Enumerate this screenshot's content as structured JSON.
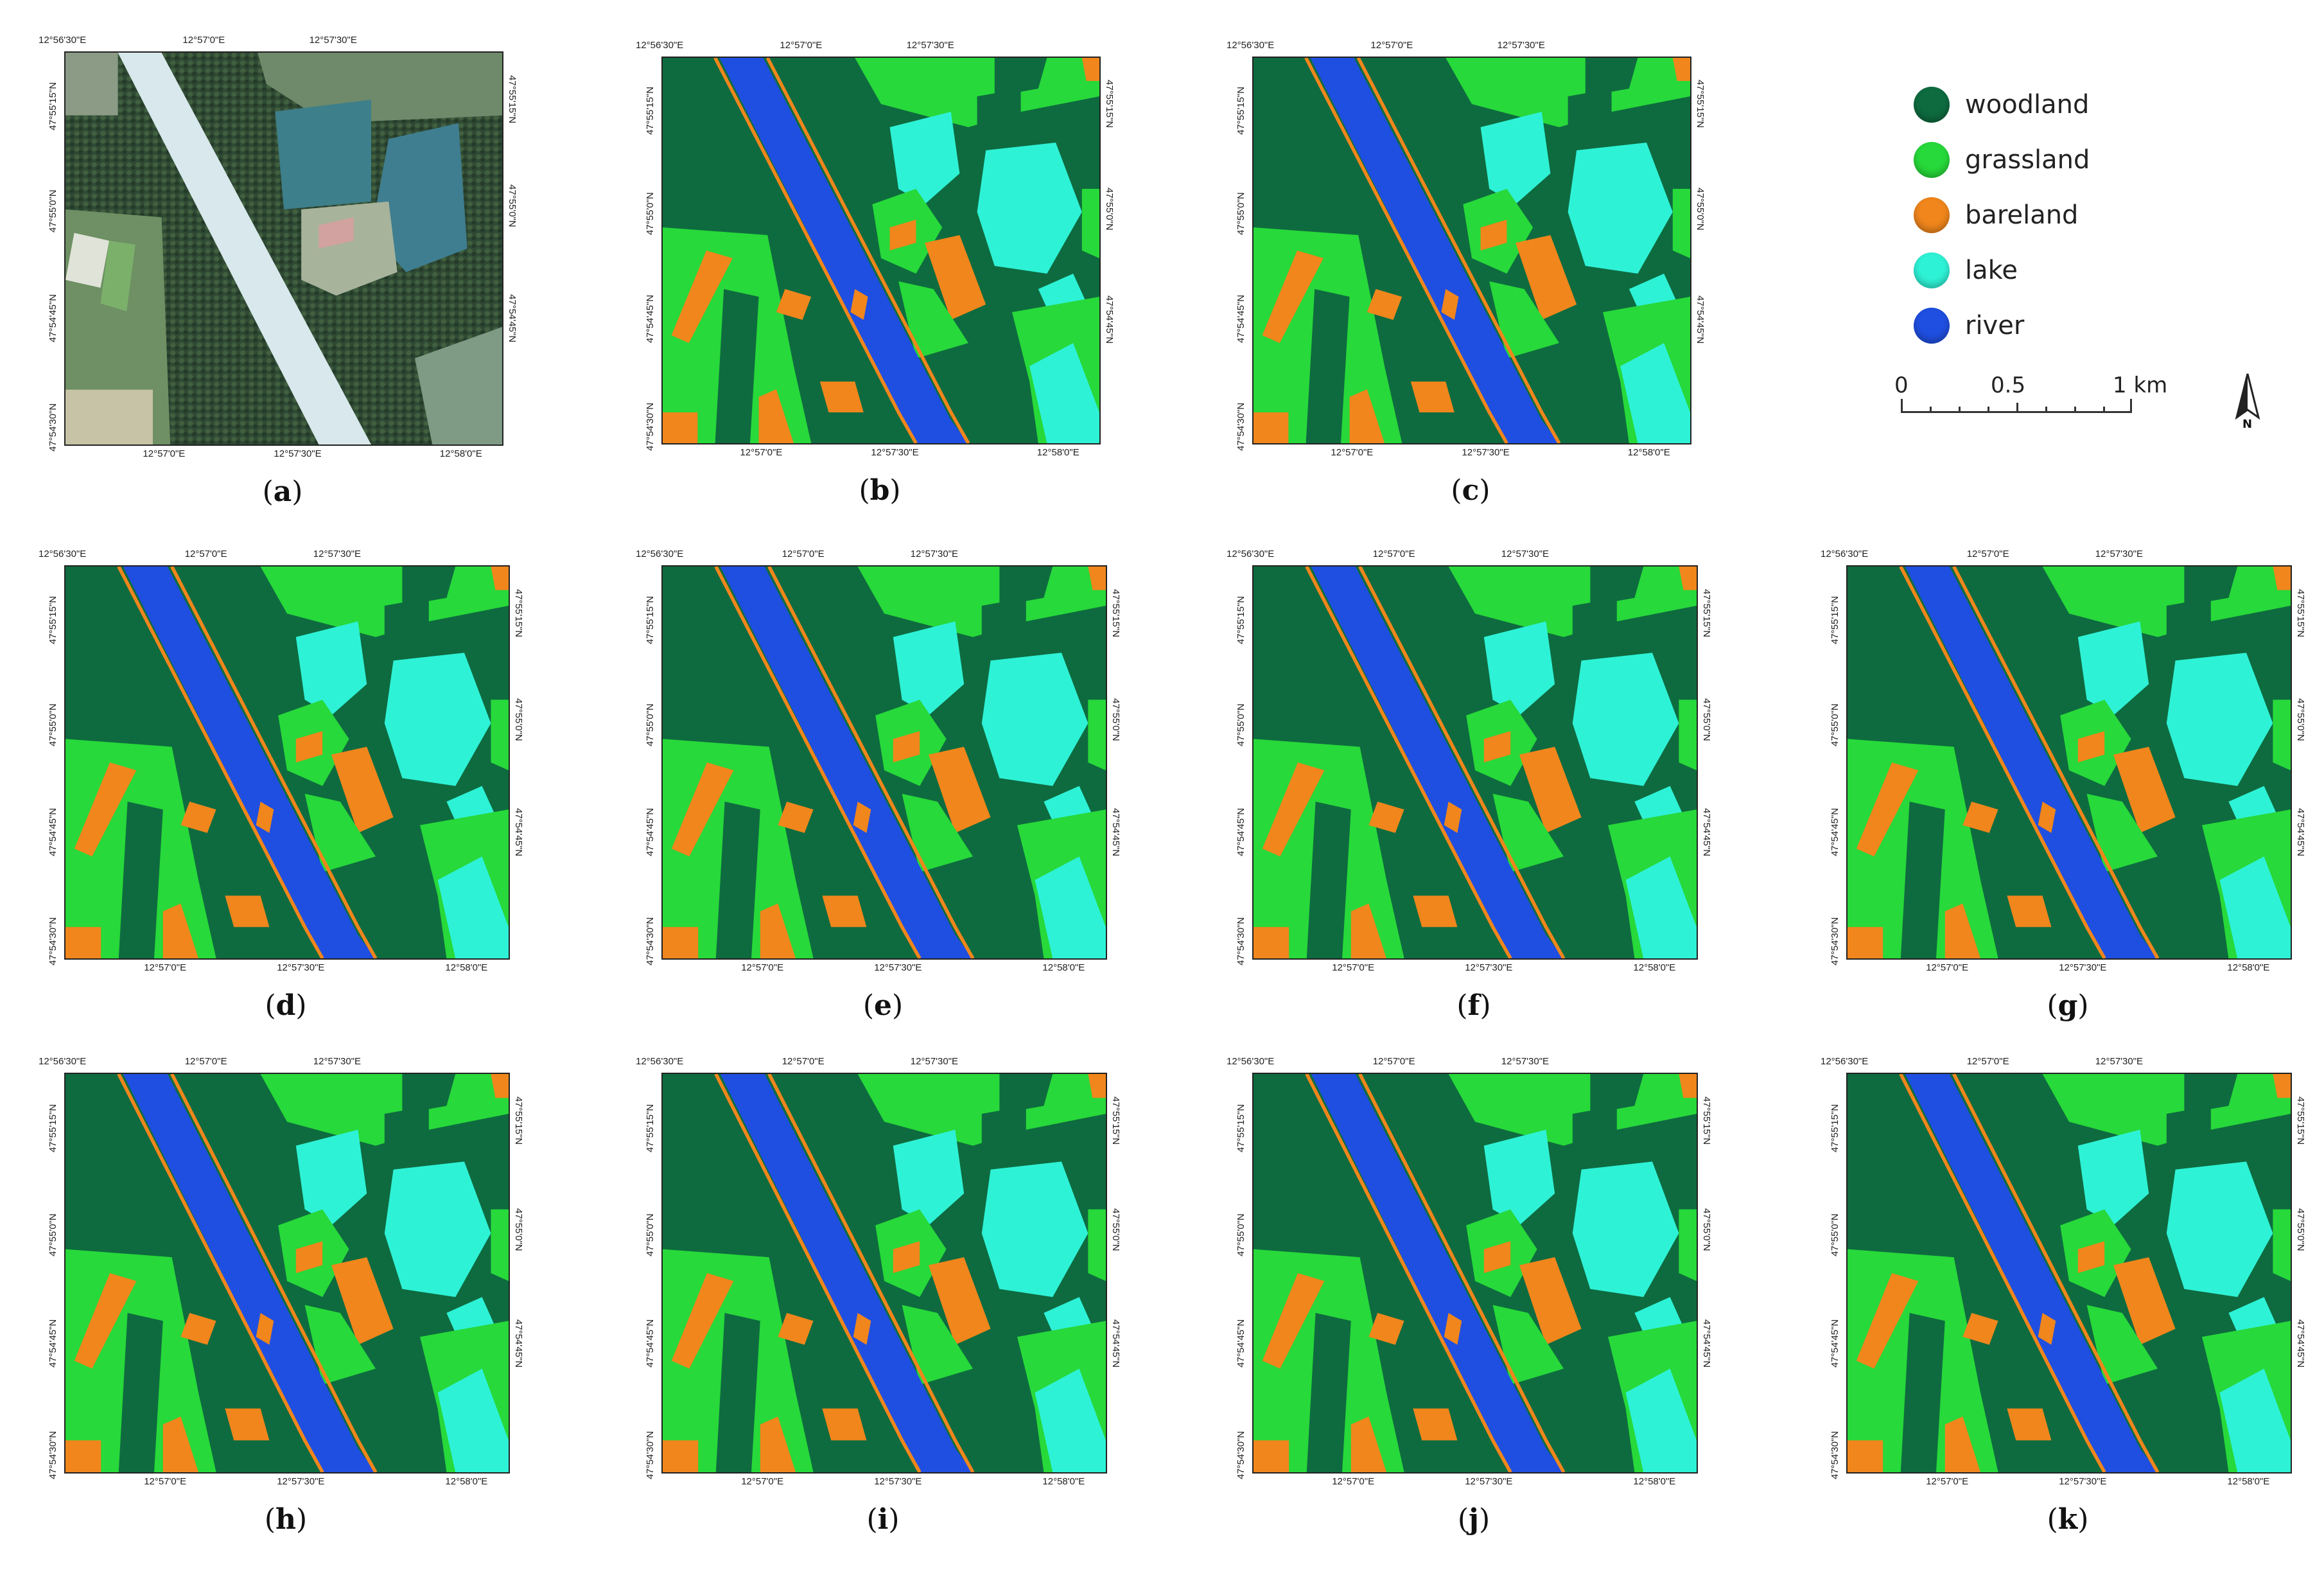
{
  "legend": {
    "items": [
      {
        "label": "woodland",
        "color": "#0e6b3f"
      },
      {
        "label": "grassland",
        "color": "#27d93a"
      },
      {
        "label": "bareland",
        "color": "#f0861c"
      },
      {
        "label": "lake",
        "color": "#2ef2d6"
      },
      {
        "label": "river",
        "color": "#1f4fe0"
      }
    ]
  },
  "scalebar": {
    "labels": [
      "0",
      "0.5",
      "1 km"
    ]
  },
  "north_label": "N",
  "ticks": {
    "top": [
      "12°56'30\"E",
      "12°57'0\"E",
      "12°57'30\"E"
    ],
    "bottom": [
      "12°57'0\"E",
      "12°57'30\"E",
      "12°58'0\"E"
    ],
    "left": [
      "47°55'15\"N",
      "47°55'0\"N",
      "47°54'45\"N",
      "47°54'30\"N"
    ],
    "right": [
      "47°55'15\"N",
      "47°55'0\"N",
      "47°54'45\"N"
    ]
  },
  "panels": [
    {
      "id": "a",
      "caption": "a",
      "kind": "imagery"
    },
    {
      "id": "b",
      "caption": "b",
      "kind": "classified"
    },
    {
      "id": "c",
      "caption": "c",
      "kind": "classified"
    },
    {
      "id": "d",
      "caption": "d",
      "kind": "classified"
    },
    {
      "id": "e",
      "caption": "e",
      "kind": "classified"
    },
    {
      "id": "f",
      "caption": "f",
      "kind": "classified"
    },
    {
      "id": "g",
      "caption": "g",
      "kind": "classified"
    },
    {
      "id": "h",
      "caption": "h",
      "kind": "classified"
    },
    {
      "id": "i",
      "caption": "i",
      "kind": "classified"
    },
    {
      "id": "j",
      "caption": "j",
      "kind": "classified"
    },
    {
      "id": "k",
      "caption": "k",
      "kind": "classified"
    }
  ]
}
